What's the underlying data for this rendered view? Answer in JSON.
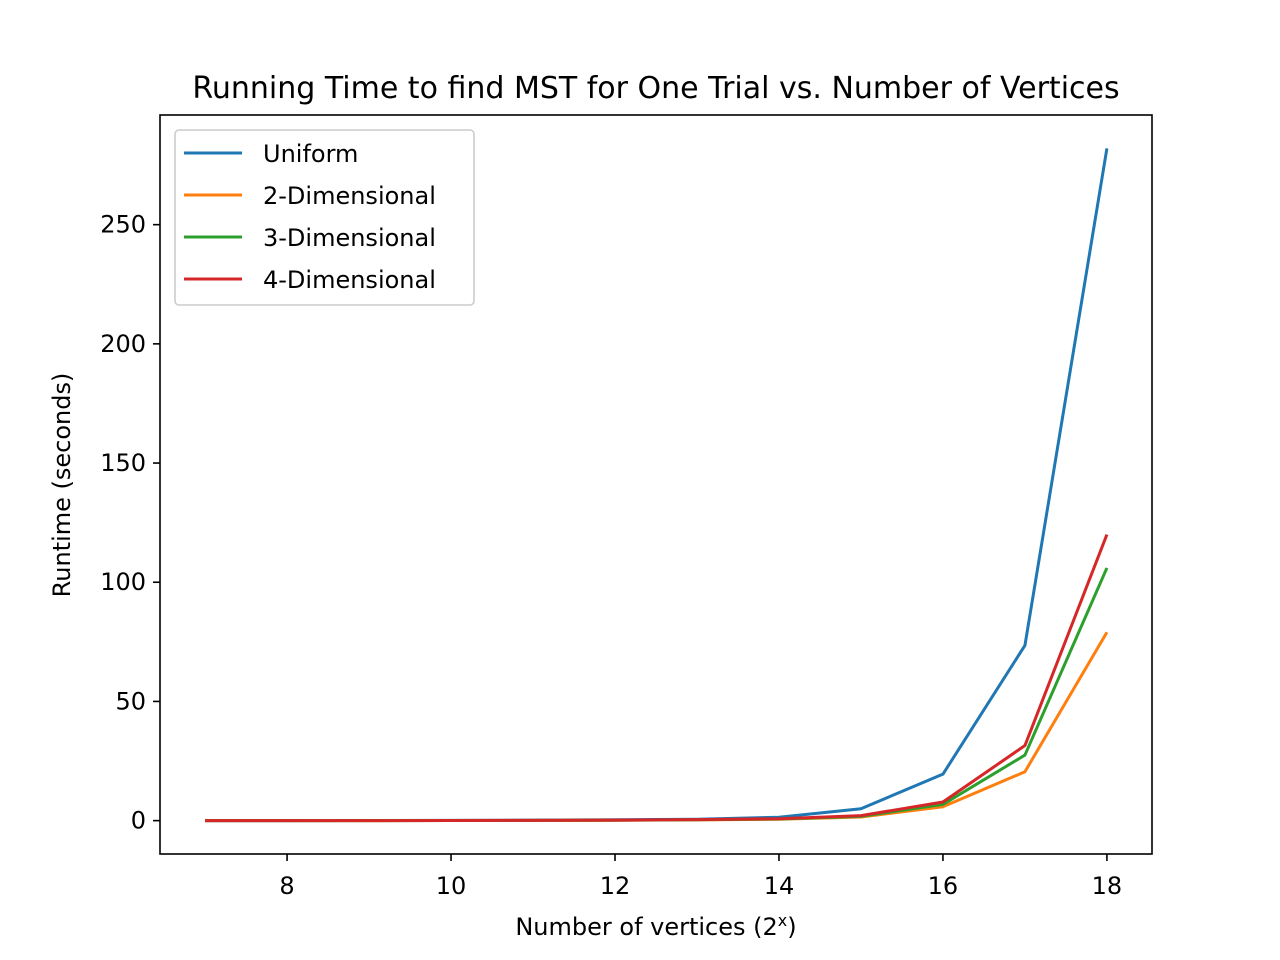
{
  "chart_data": {
    "type": "line",
    "title": "Running Time to find MST for One Trial vs. Number of Vertices",
    "xlabel": "Number of vertices (2",
    "xlabel_superscript": "x",
    "xlabel_suffix": ")",
    "ylabel": "Runtime (seconds)",
    "x": [
      7,
      8,
      9,
      10,
      11,
      12,
      13,
      14,
      15,
      16,
      17,
      18
    ],
    "xlim": [
      6.45,
      18.55
    ],
    "ylim": [
      -14,
      296
    ],
    "xticks": [
      8,
      10,
      12,
      14,
      16,
      18
    ],
    "yticks": [
      0,
      50,
      100,
      150,
      200,
      250
    ],
    "legend_position": "upper-left",
    "grid": false,
    "series": [
      {
        "name": "Uniform",
        "color": "#1f77b4",
        "values": [
          0.01,
          0.02,
          0.05,
          0.1,
          0.2,
          0.35,
          0.6,
          1.4,
          5.0,
          19.5,
          73.5,
          282
        ]
      },
      {
        "name": "2-Dimensional",
        "color": "#ff7f0e",
        "values": [
          0.0,
          0.01,
          0.02,
          0.04,
          0.08,
          0.15,
          0.3,
          0.6,
          1.5,
          5.8,
          20.5,
          79
        ]
      },
      {
        "name": "3-Dimensional",
        "color": "#2ca02c",
        "values": [
          0.0,
          0.01,
          0.02,
          0.05,
          0.09,
          0.18,
          0.35,
          0.7,
          1.8,
          6.8,
          27.5,
          106
        ]
      },
      {
        "name": "4-Dimensional",
        "color": "#d62728",
        "values": [
          0.0,
          0.01,
          0.02,
          0.05,
          0.1,
          0.2,
          0.4,
          0.8,
          2.1,
          7.8,
          31.5,
          120
        ]
      }
    ]
  }
}
